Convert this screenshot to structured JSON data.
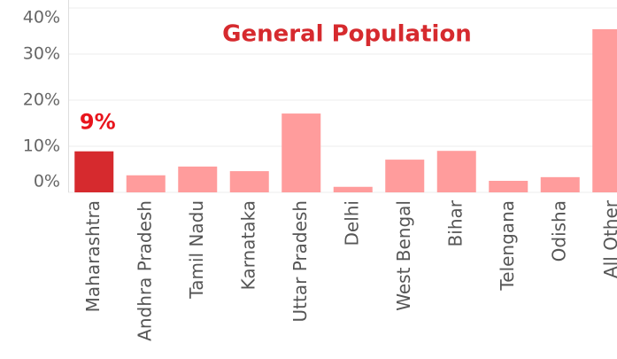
{
  "chart_data": {
    "type": "bar",
    "title": "General Population",
    "categories": [
      "Maharashtra",
      "Andhra Pradesh",
      "Tamil Nadu",
      "Karnataka",
      "Uttar Pradesh",
      "Delhi",
      "West Bengal",
      "Bihar",
      "Telengana",
      "Odisha",
      "All Other"
    ],
    "values": [
      8.9,
      3.7,
      5.6,
      4.6,
      17.1,
      1.2,
      7.1,
      9.0,
      2.5,
      3.3,
      35.4
    ],
    "value_labels": [
      "9%",
      null,
      null,
      null,
      null,
      null,
      null,
      null,
      null,
      null,
      null
    ],
    "colors": [
      "#d62a2e",
      "#ff9c9c",
      "#ff9c9c",
      "#ff9c9c",
      "#ff9c9c",
      "#ff9c9c",
      "#ff9c9c",
      "#ff9c9c",
      "#ff9c9c",
      "#ff9c9c",
      "#ff9c9c"
    ],
    "ylim": [
      0,
      40
    ],
    "yticks": [
      {
        "value": 0,
        "label": "0%"
      },
      {
        "value": 10,
        "label": "10%"
      },
      {
        "value": 20,
        "label": "20%"
      },
      {
        "value": 30,
        "label": "30%"
      },
      {
        "value": 40,
        "label": "40%"
      }
    ],
    "grid": true
  }
}
